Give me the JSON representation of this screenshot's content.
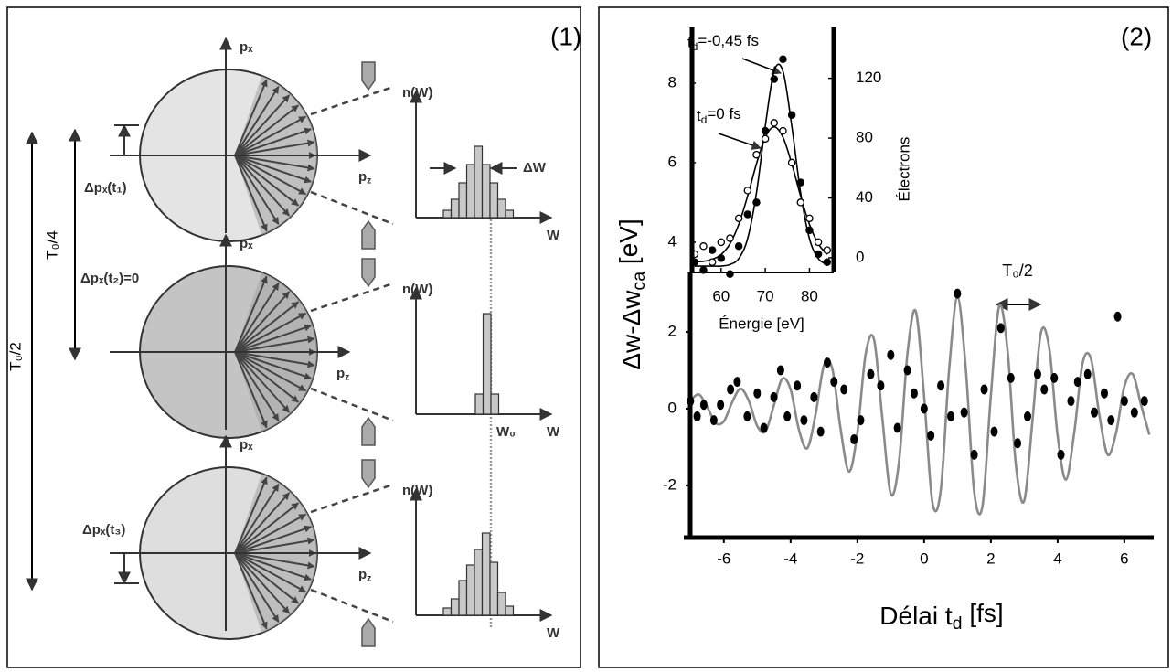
{
  "diagram": {
    "label": "(1)",
    "rows": [
      {
        "px": "pₓ",
        "pz": {
          "base": "p",
          "sub": "z"
        },
        "nw": "n(W)",
        "w": "W",
        "dp": "Δpₓ(t₁)",
        "dw": "ΔW"
      },
      {
        "px": "pₓ",
        "pz": {
          "base": "p",
          "sub": "z"
        },
        "nw": "n(W)",
        "w": "W",
        "dp": "Δpₓ(t₂)=0",
        "w0": "W₀"
      },
      {
        "px": "pₓ",
        "pz": {
          "base": "p",
          "sub": "z"
        },
        "nw": "n(W)",
        "w": "W",
        "dp": "Δpₓ(t₃)"
      }
    ],
    "t4": "T₀/4",
    "t2": "T₀/2"
  },
  "panel_label": "(2)",
  "chart_data": [
    {
      "type": "line",
      "xlabel": {
        "base": "Délai t",
        "sub": "d",
        "rest": " [fs]"
      },
      "ylabel": {
        "base": "Δw-Δw",
        "sub": "ca",
        "rest": " [eV]"
      },
      "xlim": [
        -7.2,
        6.88
      ],
      "ylim": [
        -3.36,
        3.55
      ],
      "xticks": [
        -6,
        -4,
        -2,
        0,
        2,
        4,
        6
      ],
      "yticks": [
        -2,
        0,
        2
      ],
      "annotation": "T₀/2",
      "series": [
        {
          "type": "line",
          "color": "#8a8a8a",
          "x": [
            -7,
            -6.75,
            -6.5,
            -6.25,
            -6,
            -5.75,
            -5.5,
            -5.25,
            -5,
            -4.75,
            -4.5,
            -4.25,
            -4,
            -3.75,
            -3.5,
            -3.25,
            -3,
            -2.75,
            -2.5,
            -2.25,
            -2,
            -1.75,
            -1.5,
            -1.25,
            -1,
            -0.75,
            -0.5,
            -0.25,
            0,
            0.25,
            0.5,
            0.75,
            1,
            1.25,
            1.5,
            1.75,
            2,
            2.25,
            2.5,
            2.75,
            3,
            3.25,
            3.5,
            3.75,
            4,
            4.25,
            4.5,
            4.75,
            5,
            5.25,
            5.5,
            5.75,
            6,
            6.25,
            6.5,
            6.75
          ],
          "values": [
            0.21,
            0.37,
            0.05,
            -0.37,
            -0.33,
            0.17,
            0.52,
            0.2,
            -0.45,
            -0.59,
            0.09,
            0.78,
            0.5,
            -0.55,
            -1.03,
            -0.14,
            1.13,
            1.04,
            -0.54,
            -1.64,
            -0.63,
            1.43,
            1.8,
            -0.26,
            -2.22,
            -1.37,
            1.43,
            2.54,
            0.32,
            -2.45,
            -2.12,
            1.02,
            2.9,
            1.03,
            -2.16,
            -2.53,
            0.34,
            2.67,
            1.52,
            -1.47,
            -2.4,
            -0.28,
            1.98,
            1.58,
            -0.7,
            -1.85,
            -0.61,
            1.19,
            1.3,
            -0.16,
            -1.2,
            -0.64,
            0.58,
            0.9,
            0.1,
            -0.68
          ]
        },
        {
          "type": "scatter",
          "color": "#000000",
          "x": [
            -7,
            -6.8,
            -6.6,
            -6.3,
            -6.1,
            -5.8,
            -5.6,
            -5.3,
            -5.0,
            -4.8,
            -4.5,
            -4.3,
            -4.1,
            -3.8,
            -3.6,
            -3.3,
            -3.1,
            -2.9,
            -2.7,
            -2.4,
            -2.1,
            -1.9,
            -1.6,
            -1.3,
            -1.0,
            -0.8,
            -0.5,
            -0.3,
            0,
            0.2,
            0.5,
            0.8,
            1.0,
            1.2,
            1.5,
            1.8,
            2.1,
            2.3,
            2.6,
            2.8,
            3.1,
            3.4,
            3.6,
            3.9,
            4.1,
            4.4,
            4.6,
            4.9,
            5.1,
            5.4,
            5.6,
            5.8,
            6.0,
            6.3,
            6.6
          ],
          "values": [
            0.2,
            -0.2,
            0.1,
            -0.3,
            0.1,
            0.5,
            0.7,
            -0.2,
            0.4,
            -0.5,
            0.3,
            1.0,
            -0.2,
            0.6,
            -0.3,
            0.3,
            -0.6,
            1.2,
            0.7,
            0.5,
            -0.8,
            -0.3,
            0.9,
            0.6,
            1.4,
            -0.5,
            1.0,
            0.4,
            0,
            -0.7,
            0.6,
            -0.2,
            3.0,
            -0.1,
            -1.2,
            0.5,
            -0.6,
            2.1,
            0.8,
            -0.9,
            -0.2,
            0.9,
            0.5,
            0.8,
            -1.2,
            0.2,
            0.7,
            0.9,
            -0.1,
            0.4,
            -0.3,
            2.4,
            0.2,
            -0.1,
            0.2
          ]
        }
      ]
    },
    {
      "type": "scatter",
      "xlabel": "Énergie [eV]",
      "y2label": "Électrons",
      "xlim": [
        53,
        85.5
      ],
      "ylim": [
        3.24,
        9.4
      ],
      "y2lim": [
        -9.8,
        154
      ],
      "xticks": [
        60,
        70,
        80
      ],
      "yticks": [
        4,
        6,
        8
      ],
      "y2ticks": [
        0,
        40,
        80,
        120
      ],
      "series": [
        {
          "name": {
            "base": "t",
            "sub": "d",
            "rest": "=-0,45 fs"
          },
          "marker": "filled",
          "color": "#000000",
          "x": [
            54,
            56,
            58,
            60,
            62,
            64,
            66,
            68,
            70,
            72,
            74,
            76,
            78,
            80,
            82,
            84
          ],
          "values": [
            3.5,
            3.3,
            3.8,
            3.6,
            3.2,
            3.9,
            4.7,
            5.0,
            6.8,
            8.1,
            8.6,
            7.2,
            5.5,
            4.3,
            3.7,
            3.5
          ],
          "fit": [
            3.4,
            3.4,
            3.4,
            3.4,
            3.44,
            3.59,
            4.09,
            5.24,
            6.92,
            8.3,
            8.3,
            6.92,
            5.24,
            4.09,
            3.59,
            3.44
          ]
        },
        {
          "name": {
            "base": "t",
            "sub": "d",
            "rest": "=0 fs"
          },
          "marker": "open",
          "color": "#000000",
          "x": [
            54,
            56,
            58,
            60,
            62,
            64,
            66,
            68,
            70,
            72,
            74,
            76,
            78,
            80,
            82,
            84
          ],
          "values": [
            3.7,
            3.9,
            3.5,
            4.0,
            4.1,
            4.6,
            5.3,
            6.2,
            6.6,
            7.0,
            6.8,
            6.0,
            5.0,
            4.6,
            4.0,
            3.8
          ],
          "fit": [
            3.51,
            3.52,
            3.57,
            3.69,
            3.96,
            4.45,
            5.16,
            5.97,
            6.64,
            6.9,
            6.64,
            5.97,
            5.16,
            4.45,
            3.96,
            3.69
          ]
        }
      ]
    }
  ]
}
